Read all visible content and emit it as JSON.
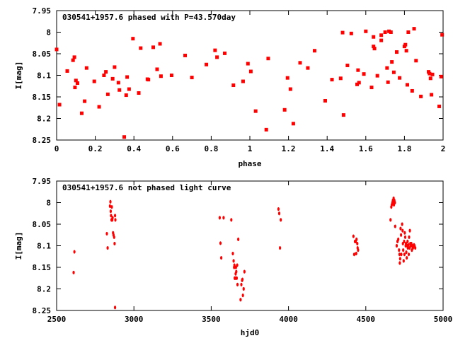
{
  "chart_data": [
    {
      "type": "scatter",
      "title": "030541+1957.6 phased with P=43.570day",
      "xlabel": "phase",
      "ylabel": "I[mag]",
      "xlim": [
        0,
        2
      ],
      "ylim": [
        8.25,
        7.95
      ],
      "y_inverted": true,
      "xticks": [
        "0",
        "0.2",
        "0.4",
        "0.6",
        "0.8",
        "1",
        "1.2",
        "1.4",
        "1.6",
        "1.8",
        "2"
      ],
      "yticks": [
        "7.95",
        "8",
        "8.05",
        "8.1",
        "8.15",
        "8.2",
        "8.25"
      ],
      "marker_color": "#ff0000",
      "series": [
        {
          "points": [
            [
              0.0,
              8.04
            ],
            [
              0.015,
              8.168
            ],
            [
              0.055,
              8.09
            ],
            [
              0.085,
              8.065
            ],
            [
              0.092,
              8.058
            ],
            [
              0.095,
              8.128
            ],
            [
              0.1,
              8.112
            ],
            [
              0.108,
              8.118
            ],
            [
              0.13,
              8.188
            ],
            [
              0.145,
              8.16
            ],
            [
              0.155,
              8.083
            ],
            [
              0.195,
              8.114
            ],
            [
              0.22,
              8.173
            ],
            [
              0.245,
              8.1
            ],
            [
              0.255,
              8.092
            ],
            [
              0.265,
              8.144
            ],
            [
              0.29,
              8.108
            ],
            [
              0.3,
              8.081
            ],
            [
              0.32,
              8.117
            ],
            [
              0.325,
              8.134
            ],
            [
              0.35,
              8.243
            ],
            [
              0.36,
              8.146
            ],
            [
              0.365,
              8.104
            ],
            [
              0.375,
              8.132
            ],
            [
              0.395,
              8.015
            ],
            [
              0.425,
              8.141
            ],
            [
              0.435,
              8.037
            ],
            [
              0.47,
              8.109
            ],
            [
              0.475,
              8.11
            ],
            [
              0.5,
              8.035
            ],
            [
              0.52,
              8.086
            ],
            [
              0.535,
              8.027
            ],
            [
              0.54,
              8.102
            ],
            [
              0.595,
              8.1
            ],
            [
              0.665,
              8.054
            ],
            [
              0.7,
              8.105
            ],
            [
              0.775,
              8.075
            ],
            [
              0.82,
              8.042
            ],
            [
              0.83,
              8.058
            ],
            [
              0.87,
              8.049
            ],
            [
              0.915,
              8.123
            ],
            [
              0.965,
              8.114
            ],
            [
              0.99,
              8.073
            ],
            [
              1.005,
              8.091
            ],
            [
              1.03,
              8.183
            ],
            [
              1.085,
              8.226
            ],
            [
              1.095,
              8.061
            ],
            [
              1.18,
              8.18
            ],
            [
              1.195,
              8.106
            ],
            [
              1.21,
              8.132
            ],
            [
              1.225,
              8.212
            ],
            [
              1.26,
              8.071
            ],
            [
              1.3,
              8.083
            ],
            [
              1.335,
              8.043
            ],
            [
              1.39,
              8.159
            ],
            [
              1.425,
              8.11
            ],
            [
              1.47,
              8.107
            ],
            [
              1.48,
              8.001
            ],
            [
              1.485,
              8.192
            ],
            [
              1.505,
              8.077
            ],
            [
              1.525,
              8.003
            ],
            [
              1.555,
              8.121
            ],
            [
              1.56,
              8.088
            ],
            [
              1.565,
              8.117
            ],
            [
              1.59,
              8.097
            ],
            [
              1.6,
              7.998
            ],
            [
              1.63,
              8.128
            ],
            [
              1.64,
              8.011
            ],
            [
              1.64,
              8.033
            ],
            [
              1.645,
              8.038
            ],
            [
              1.66,
              8.101
            ],
            [
              1.68,
              8.007
            ],
            [
              1.68,
              8.019
            ],
            [
              1.7,
              8.0
            ],
            [
              1.71,
              8.083
            ],
            [
              1.715,
              8.116
            ],
            [
              1.72,
              7.998
            ],
            [
              1.73,
              8.0
            ],
            [
              1.735,
              8.069
            ],
            [
              1.745,
              8.093
            ],
            [
              1.76,
              8.046
            ],
            [
              1.775,
              8.106
            ],
            [
              1.8,
              8.033
            ],
            [
              1.805,
              8.029
            ],
            [
              1.81,
              8.043
            ],
            [
              1.815,
              8.122
            ],
            [
              1.82,
              8.0
            ],
            [
              1.84,
              8.136
            ],
            [
              1.85,
              7.992
            ],
            [
              1.86,
              8.066
            ],
            [
              1.885,
              8.149
            ],
            [
              1.925,
              8.092
            ],
            [
              1.93,
              8.096
            ],
            [
              1.935,
              8.107
            ],
            [
              1.94,
              8.145
            ],
            [
              1.945,
              8.098
            ],
            [
              1.98,
              8.172
            ],
            [
              1.99,
              8.103
            ],
            [
              1.995,
              8.006
            ]
          ]
        }
      ]
    },
    {
      "type": "scatter",
      "title": "030541+1957.6 not phased light curve",
      "xlabel": "hjd0",
      "ylabel": "I[mag]",
      "xlim": [
        2500,
        5000
      ],
      "ylim": [
        8.25,
        7.95
      ],
      "y_inverted": true,
      "xticks": [
        "2500",
        "3000",
        "3500",
        "4000",
        "4500",
        "5000"
      ],
      "yticks": [
        "7.95",
        "8",
        "8.05",
        "8.1",
        "8.15",
        "8.2",
        "8.25"
      ],
      "marker_color": "#ff0000",
      "series": [
        {
          "points": [
            [
              2610,
              8.162
            ],
            [
              2615,
              8.114
            ],
            [
              2825,
              8.072
            ],
            [
              2830,
              8.105
            ],
            [
              2845,
              8.008
            ],
            [
              2848,
              7.998
            ],
            [
              2850,
              8.02
            ],
            [
              2852,
              8.03
            ],
            [
              2855,
              8.04
            ],
            [
              2857,
              8.01
            ],
            [
              2860,
              8.04
            ],
            [
              2862,
              8.035
            ],
            [
              2865,
              8.07
            ],
            [
              2868,
              8.075
            ],
            [
              2872,
              8.08
            ],
            [
              2875,
              8.095
            ],
            [
              2878,
              8.03
            ],
            [
              2880,
              8.04
            ],
            [
              2878,
              8.243
            ],
            [
              3555,
              8.035
            ],
            [
              3560,
              8.094
            ],
            [
              3565,
              8.128
            ],
            [
              3580,
              8.035
            ],
            [
              3630,
              8.04
            ],
            [
              3640,
              8.118
            ],
            [
              3645,
              8.135
            ],
            [
              3648,
              8.15
            ],
            [
              3650,
              8.145
            ],
            [
              3652,
              8.175
            ],
            [
              3655,
              8.175
            ],
            [
              3658,
              8.165
            ],
            [
              3660,
              8.15
            ],
            [
              3662,
              8.16
            ],
            [
              3665,
              8.175
            ],
            [
              3668,
              8.145
            ],
            [
              3670,
              8.19
            ],
            [
              3675,
              8.085
            ],
            [
              3690,
              8.225
            ],
            [
              3695,
              8.19
            ],
            [
              3700,
              8.18
            ],
            [
              3702,
              8.178
            ],
            [
              3705,
              8.215
            ],
            [
              3710,
              8.2
            ],
            [
              3715,
              8.16
            ],
            [
              3935,
              8.015
            ],
            [
              3940,
              8.025
            ],
            [
              3945,
              8.105
            ],
            [
              3950,
              8.04
            ],
            [
              4420,
              8.078
            ],
            [
              4425,
              8.12
            ],
            [
              4430,
              8.09
            ],
            [
              4435,
              8.09
            ],
            [
              4438,
              8.118
            ],
            [
              4440,
              8.085
            ],
            [
              4445,
              8.095
            ],
            [
              4447,
              8.105
            ],
            [
              4450,
              8.11
            ],
            [
              4660,
              8.04
            ],
            [
              4665,
              8.01
            ],
            [
              4668,
              8.005
            ],
            [
              4672,
              8.0
            ],
            [
              4675,
              7.995
            ],
            [
              4678,
              8.0
            ],
            [
              4680,
              7.99
            ],
            [
              4682,
              8.005
            ],
            [
              4685,
              7.995
            ],
            [
              4688,
              8.0
            ],
            [
              4690,
              8.055
            ],
            [
              4700,
              8.1
            ],
            [
              4705,
              8.09
            ],
            [
              4710,
              8.085
            ],
            [
              4715,
              8.11
            ],
            [
              4718,
              8.12
            ],
            [
              4720,
              8.14
            ],
            [
              4722,
              8.13
            ],
            [
              4725,
              8.06
            ],
            [
              4728,
              8.075
            ],
            [
              4730,
              8.12
            ],
            [
              4735,
              8.05
            ],
            [
              4738,
              8.065
            ],
            [
              4740,
              8.095
            ],
            [
              4742,
              8.11
            ],
            [
              4745,
              8.135
            ],
            [
              4748,
              8.09
            ],
            [
              4750,
              8.12
            ],
            [
              4752,
              8.07
            ],
            [
              4755,
              8.08
            ],
            [
              4758,
              8.1
            ],
            [
              4760,
              8.095
            ],
            [
              4762,
              8.115
            ],
            [
              4765,
              8.128
            ],
            [
              4768,
              8.1
            ],
            [
              4770,
              8.09
            ],
            [
              4772,
              8.105
            ],
            [
              4775,
              8.098
            ],
            [
              4778,
              8.12
            ],
            [
              4780,
              8.08
            ],
            [
              4783,
              8.105
            ],
            [
              4785,
              8.065
            ],
            [
              4788,
              8.095
            ],
            [
              4790,
              8.1
            ],
            [
              4793,
              8.1
            ],
            [
              4795,
              8.095
            ],
            [
              4798,
              8.11
            ],
            [
              4800,
              8.1
            ],
            [
              4805,
              8.105
            ],
            [
              4808,
              8.1
            ],
            [
              4812,
              8.098
            ],
            [
              4815,
              8.1
            ],
            [
              4820,
              8.105
            ]
          ]
        }
      ]
    }
  ]
}
